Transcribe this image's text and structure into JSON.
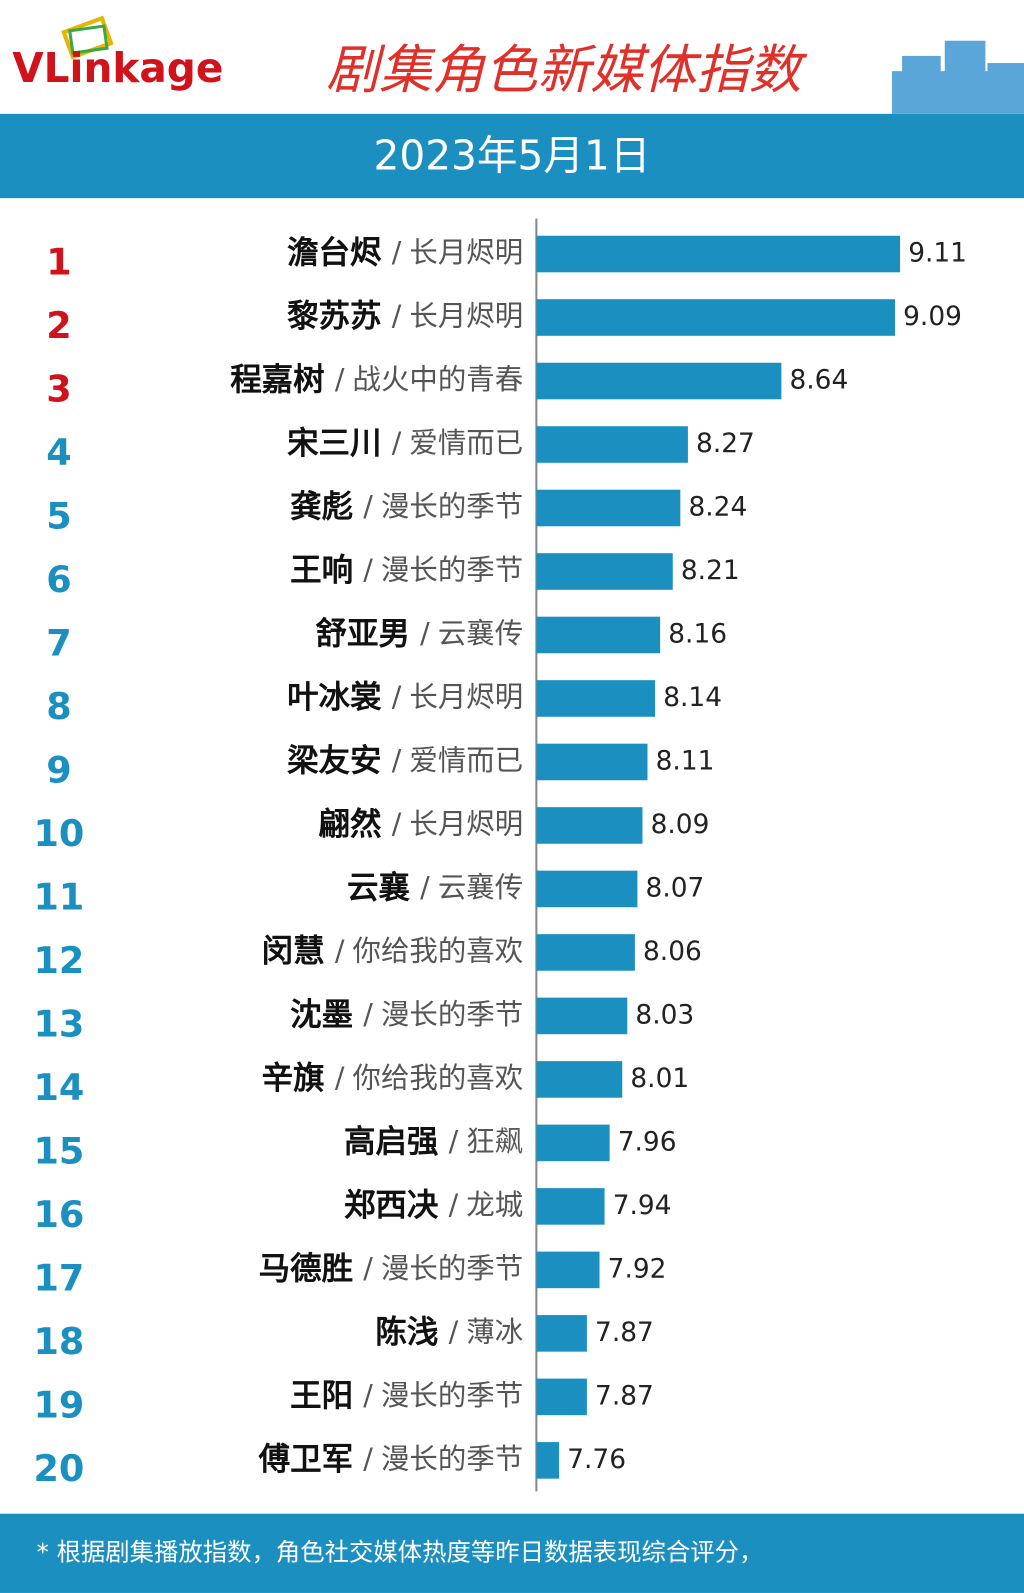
{
  "chart_data": {
    "type": "bar",
    "orientation": "horizontal",
    "brand": "VLinkage",
    "title": "剧集角色新媒体指数",
    "subtitle": "2023年5月1日",
    "separator": "/",
    "ranks": [
      1,
      2,
      3,
      4,
      5,
      6,
      7,
      8,
      9,
      10,
      11,
      12,
      13,
      14,
      15,
      16,
      17,
      18,
      19,
      20
    ],
    "rank_colors": [
      "#d0121b",
      "#d0121b",
      "#d0121b",
      "#1a8fc0",
      "#1a8fc0",
      "#1a8fc0",
      "#1a8fc0",
      "#1a8fc0",
      "#1a8fc0",
      "#1a8fc0",
      "#1a8fc0",
      "#1a8fc0",
      "#1a8fc0",
      "#1a8fc0",
      "#1a8fc0",
      "#1a8fc0",
      "#1a8fc0",
      "#1a8fc0",
      "#1a8fc0",
      "#1a8fc0"
    ],
    "categories": [
      "澹台烬",
      "黎苏苏",
      "程嘉树",
      "宋三川",
      "龚彪",
      "王响",
      "舒亚男",
      "叶冰裳",
      "梁友安",
      "翩然",
      "云襄",
      "闵慧",
      "沈墨",
      "辛旗",
      "高启强",
      "郑西决",
      "马德胜",
      "陈浅",
      "王阳",
      "傅卫军"
    ],
    "dramas": [
      "长月烬明",
      "长月烬明",
      "战火中的青春",
      "爱情而已",
      "漫长的季节",
      "漫长的季节",
      "云襄传",
      "长月烬明",
      "爱情而已",
      "长月烬明",
      "云襄传",
      "你给我的喜欢",
      "漫长的季节",
      "你给我的喜欢",
      "狂飙",
      "龙城",
      "漫长的季节",
      "薄冰",
      "漫长的季节",
      "漫长的季节"
    ],
    "values": [
      9.11,
      9.09,
      8.64,
      8.27,
      8.24,
      8.21,
      8.16,
      8.14,
      8.11,
      8.09,
      8.07,
      8.06,
      8.03,
      8.01,
      7.96,
      7.94,
      7.92,
      7.87,
      7.87,
      7.76
    ],
    "color": "#1a8fc0",
    "xlim": [
      7.67,
      9.11
    ],
    "footnote": "* 根据剧集播放指数，角色社交媒体热度等昨日数据表现综合评分，"
  }
}
